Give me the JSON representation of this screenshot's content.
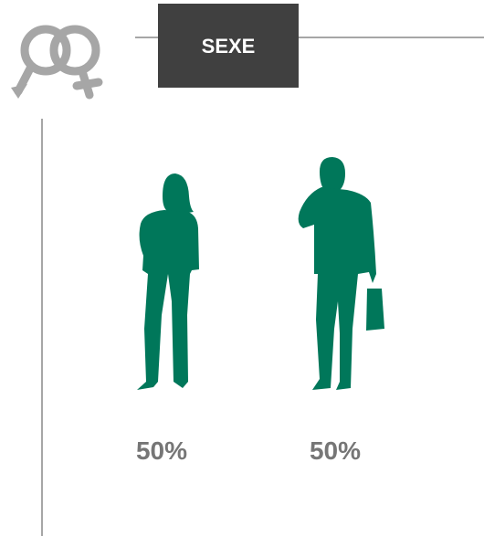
{
  "title": "SEXE",
  "percentages": [
    "50%",
    "50%"
  ]
}
